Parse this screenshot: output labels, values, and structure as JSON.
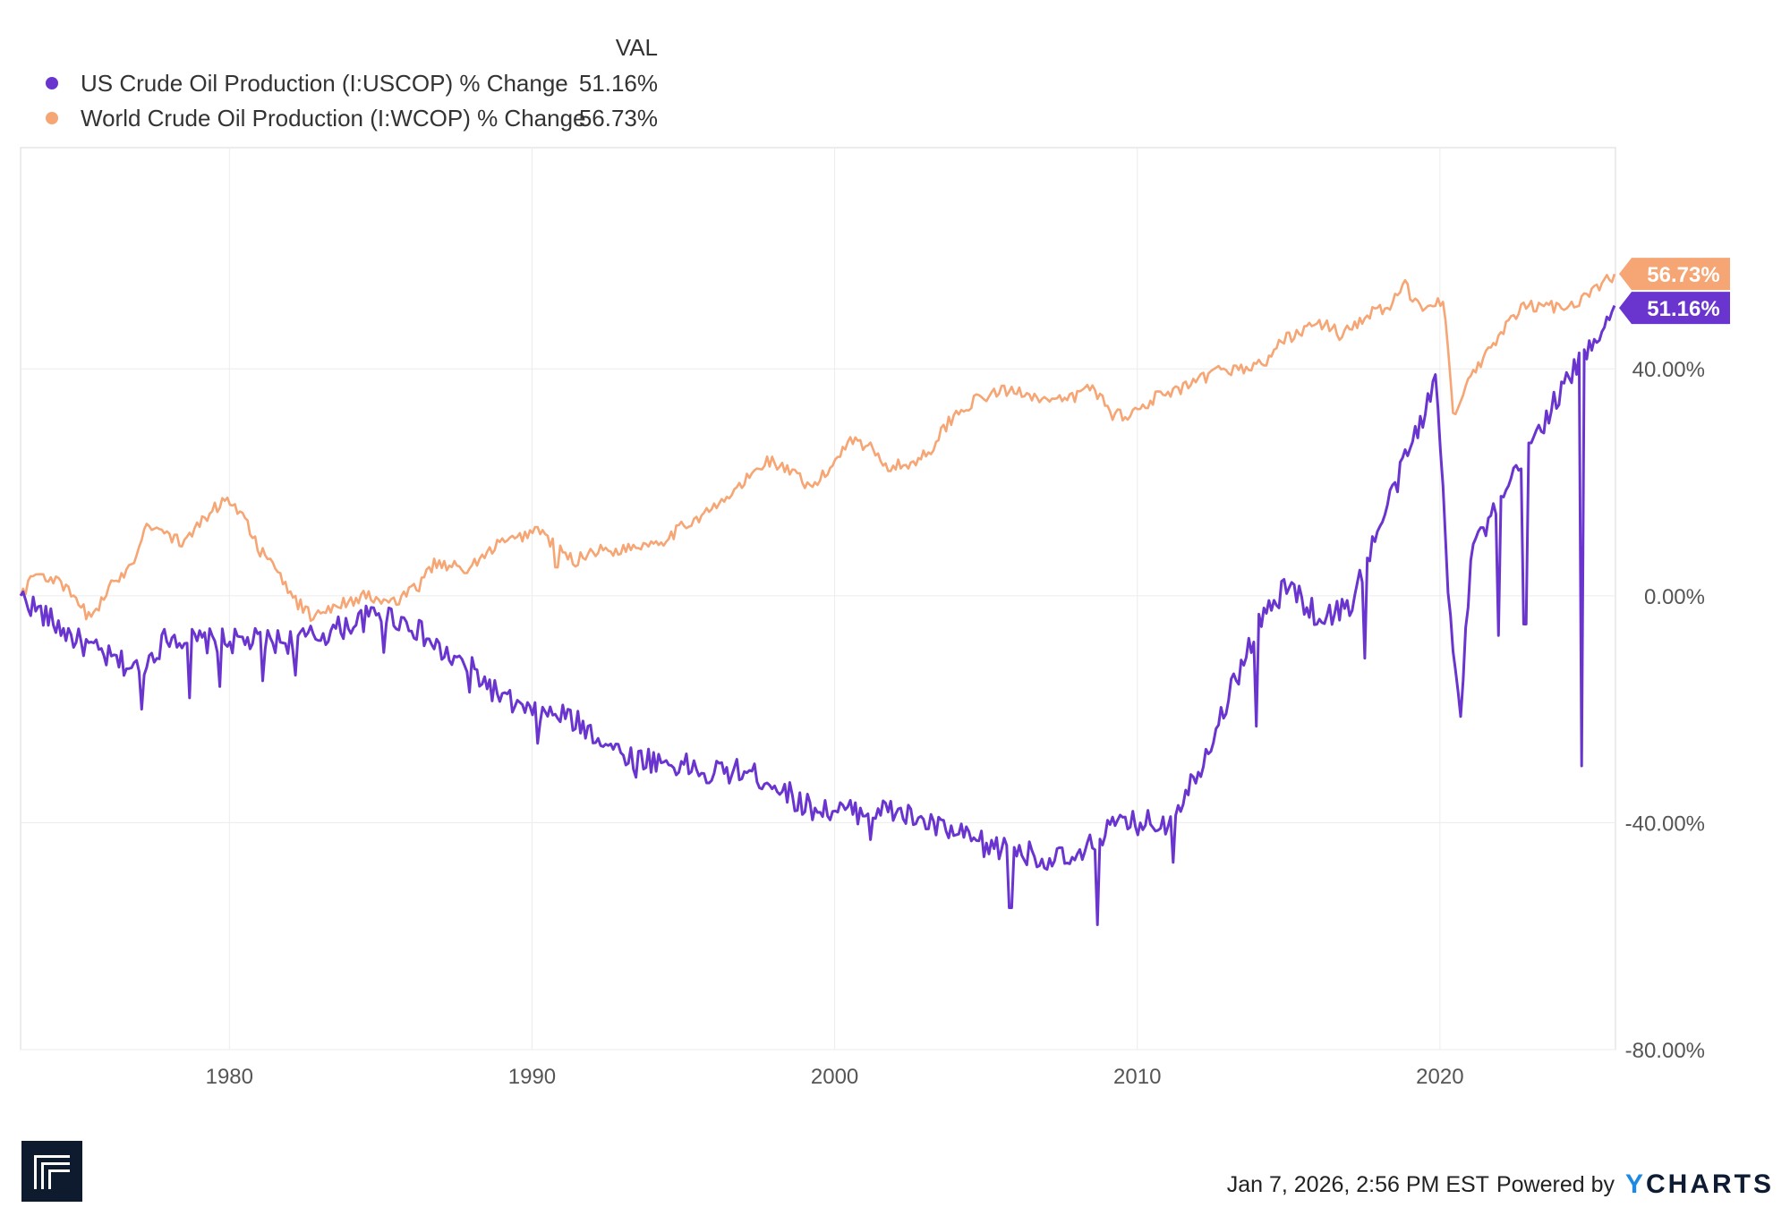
{
  "legend": {
    "header": "VAL",
    "items": [
      {
        "label": "US Crude Oil Production (I:USCOP) % Change",
        "value": "51.16%",
        "color": "#6a35cf"
      },
      {
        "label": "World Crude Oil Production (I:WCOP) % Change",
        "value": "56.73%",
        "color": "#f6a574"
      }
    ]
  },
  "chart_data": {
    "type": "line",
    "title": "",
    "xlabel": "",
    "ylabel": "",
    "x_ticks": [
      1980,
      1990,
      2000,
      2010,
      2020
    ],
    "y_ticks": [
      40,
      0,
      -40,
      -80
    ],
    "y_tick_labels": [
      "40.00%",
      "0.00%",
      "-40.00%",
      "-80.00%"
    ],
    "xlim": [
      1973.1,
      2025.8
    ],
    "ylim": [
      -80,
      79
    ],
    "grid": true,
    "series": [
      {
        "name": "US Crude Oil Production (I:USCOP) % Change",
        "color": "#6a35cf",
        "end_label": "51.16%",
        "points": [
          [
            1973.1,
            0
          ],
          [
            1974,
            -4
          ],
          [
            1975,
            -8
          ],
          [
            1976,
            -11
          ],
          [
            1977,
            -13
          ],
          [
            1978,
            -7
          ],
          [
            1979,
            -8
          ],
          [
            1980,
            -8
          ],
          [
            1981,
            -8
          ],
          [
            1982,
            -8
          ],
          [
            1983,
            -7
          ],
          [
            1984,
            -5
          ],
          [
            1985,
            -3
          ],
          [
            1986,
            -5
          ],
          [
            1987,
            -10
          ],
          [
            1988,
            -13
          ],
          [
            1989,
            -18
          ],
          [
            1990,
            -21
          ],
          [
            1991,
            -21
          ],
          [
            1992,
            -24
          ],
          [
            1993,
            -28
          ],
          [
            1994,
            -29
          ],
          [
            1995,
            -30
          ],
          [
            1996,
            -31
          ],
          [
            1997,
            -31
          ],
          [
            1998,
            -33
          ],
          [
            1999,
            -37
          ],
          [
            2000,
            -38
          ],
          [
            2001,
            -38
          ],
          [
            2002,
            -38
          ],
          [
            2003,
            -40
          ],
          [
            2004,
            -42
          ],
          [
            2005,
            -44
          ],
          [
            2006,
            -45
          ],
          [
            2007,
            -46
          ],
          [
            2008,
            -47
          ],
          [
            2009,
            -41
          ],
          [
            2010,
            -40
          ],
          [
            2011,
            -40
          ],
          [
            2012,
            -31
          ],
          [
            2013,
            -18
          ],
          [
            2014,
            -5
          ],
          [
            2015,
            2
          ],
          [
            2016,
            -4
          ],
          [
            2017,
            -2
          ],
          [
            2018,
            12
          ],
          [
            2019,
            26
          ],
          [
            2019.9,
            38
          ],
          [
            2020.3,
            -2
          ],
          [
            2020.7,
            -20
          ],
          [
            2021,
            8
          ],
          [
            2022,
            16
          ],
          [
            2023,
            27
          ],
          [
            2024,
            36
          ],
          [
            2025.8,
            51.16
          ]
        ],
        "dips": [
          [
            1977.1,
            -20
          ],
          [
            1978.7,
            -18
          ],
          [
            1979.7,
            -16
          ],
          [
            1981.1,
            -15
          ],
          [
            1982.2,
            -14
          ],
          [
            1985.1,
            -10
          ],
          [
            1987.9,
            -17
          ],
          [
            1990.2,
            -26
          ],
          [
            1993.4,
            -32
          ],
          [
            1995.8,
            -33
          ],
          [
            1998.9,
            -38
          ],
          [
            2001.2,
            -43
          ],
          [
            2004.9,
            -46
          ],
          [
            2005.8,
            -55
          ],
          [
            2006.9,
            -48
          ],
          [
            2008.7,
            -58
          ],
          [
            2011.2,
            -47
          ],
          [
            2013.9,
            -23
          ],
          [
            2017.5,
            -11
          ],
          [
            2020.35,
            -2
          ],
          [
            2020.9,
            -2
          ],
          [
            2021.9,
            -7
          ],
          [
            2022.8,
            -5
          ],
          [
            2024.7,
            -30
          ]
        ]
      },
      {
        "name": "World Crude Oil Production (I:WCOP) % Change",
        "color": "#f6a574",
        "end_label": "56.73%",
        "points": [
          [
            1973.1,
            0
          ],
          [
            1973.6,
            4
          ],
          [
            1974.2,
            3
          ],
          [
            1974.8,
            0
          ],
          [
            1975.4,
            -4
          ],
          [
            1976,
            1
          ],
          [
            1976.8,
            6
          ],
          [
            1977.3,
            13
          ],
          [
            1977.9,
            11
          ],
          [
            1978.5,
            9
          ],
          [
            1979.2,
            14
          ],
          [
            1979.9,
            17
          ],
          [
            1980.4,
            15
          ],
          [
            1981,
            8
          ],
          [
            1981.6,
            4
          ],
          [
            1982.2,
            -1
          ],
          [
            1982.8,
            -4
          ],
          [
            1983.3,
            -2
          ],
          [
            1983.9,
            -1
          ],
          [
            1984.5,
            0
          ],
          [
            1985,
            -1
          ],
          [
            1985.6,
            -1
          ],
          [
            1986.3,
            2
          ],
          [
            1986.8,
            6
          ],
          [
            1987.5,
            5
          ],
          [
            1988.3,
            6
          ],
          [
            1988.8,
            9
          ],
          [
            1989.5,
            10
          ],
          [
            1990.2,
            12
          ],
          [
            1990.7,
            9
          ],
          [
            1991.4,
            6
          ],
          [
            1992,
            8
          ],
          [
            1992.8,
            8
          ],
          [
            1993.6,
            9
          ],
          [
            1994.4,
            10
          ],
          [
            1995.2,
            13
          ],
          [
            1996.2,
            16
          ],
          [
            1997.2,
            21
          ],
          [
            1997.8,
            24
          ],
          [
            1998.5,
            22
          ],
          [
            1999.2,
            19
          ],
          [
            1999.8,
            22
          ],
          [
            2000.5,
            28
          ],
          [
            2001.2,
            26
          ],
          [
            2001.8,
            23
          ],
          [
            2002.5,
            23
          ],
          [
            2003.2,
            26
          ],
          [
            2003.8,
            31
          ],
          [
            2004.5,
            34
          ],
          [
            2005.4,
            36
          ],
          [
            2006.3,
            36
          ],
          [
            2007.2,
            34
          ],
          [
            2007.9,
            35
          ],
          [
            2008.5,
            37
          ],
          [
            2009.2,
            32
          ],
          [
            2009.8,
            32
          ],
          [
            2010.6,
            35
          ],
          [
            2011.3,
            36
          ],
          [
            2012.1,
            38
          ],
          [
            2012.8,
            40
          ],
          [
            2013.5,
            40
          ],
          [
            2014.2,
            41
          ],
          [
            2014.8,
            45
          ],
          [
            2015.5,
            47
          ],
          [
            2016.2,
            48
          ],
          [
            2016.7,
            46
          ],
          [
            2017.2,
            48
          ],
          [
            2017.8,
            50
          ],
          [
            2018.4,
            51
          ],
          [
            2018.8,
            55
          ],
          [
            2019.3,
            51
          ],
          [
            2019.8,
            52
          ],
          [
            2020.15,
            52
          ],
          [
            2020.45,
            30
          ],
          [
            2020.9,
            38
          ],
          [
            2021.5,
            42
          ],
          [
            2022.1,
            47
          ],
          [
            2022.8,
            51
          ],
          [
            2023.5,
            51
          ],
          [
            2024.2,
            51
          ],
          [
            2024.9,
            53
          ],
          [
            2025.8,
            56.73
          ]
        ],
        "dips": [
          [
            1987.8,
            4
          ],
          [
            1990.8,
            5
          ],
          [
            1999,
            19
          ],
          [
            2001.8,
            22
          ],
          [
            2009.2,
            31
          ],
          [
            2016.6,
            46
          ]
        ]
      }
    ]
  },
  "footer": {
    "timestamp": "Jan 7, 2026, 2:56 PM EST",
    "powered_by": "Powered by",
    "brand_y": "Y",
    "brand_rest": "CHARTS"
  }
}
